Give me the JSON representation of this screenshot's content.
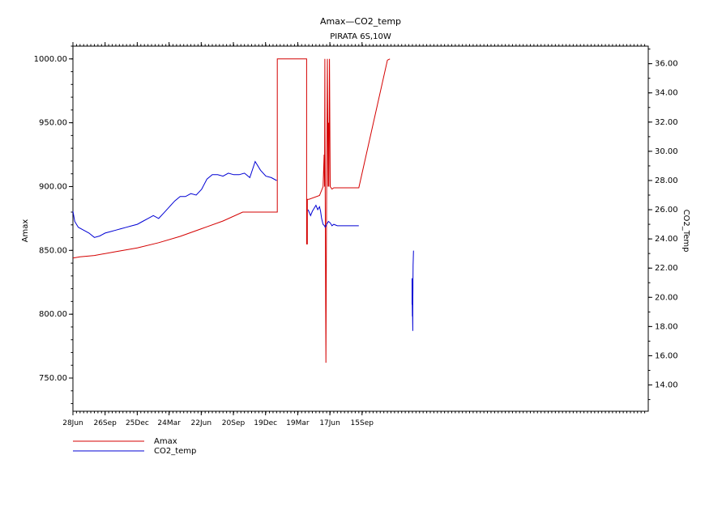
{
  "chart_data": {
    "type": "line",
    "title": "Amax—CO2_temp",
    "subtitle": "PIRATA 6S,10W",
    "ylabel_left": "Amax",
    "ylabel_right": "CO2_Temp",
    "x_ticks": [
      "28Jun",
      "26Sep",
      "25Dec",
      "24Mar",
      "22Jun",
      "20Sep",
      "19Dec",
      "19Mar",
      "17Jun",
      "15Sep"
    ],
    "x_range_days": [
      0,
      1610
    ],
    "y_left_range": [
      724,
      1010
    ],
    "y_left_ticks": [
      "750.00",
      "800.00",
      "850.00",
      "900.00",
      "950.00",
      "1000.00"
    ],
    "y_right_range": [
      12.2,
      37.2
    ],
    "y_right_ticks": [
      "14.00",
      "16.00",
      "18.00",
      "20.00",
      "22.00",
      "24.00",
      "26.00",
      "28.00",
      "30.00",
      "32.00",
      "34.00",
      "36.00"
    ],
    "grid": false,
    "legend_position": "bottom-left",
    "series": [
      {
        "name": "Amax",
        "color": "#d40000",
        "axis": "left",
        "x_days": [
          0,
          20,
          60,
          120,
          180,
          240,
          300,
          360,
          420,
          475,
          572,
          572,
          654,
          654,
          656,
          656,
          660,
          690,
          700,
          703,
          704,
          705,
          706,
          708,
          710,
          712,
          714,
          715,
          716,
          718,
          720,
          725,
          730,
          740,
          800,
          880,
          887
        ],
        "values": [
          844,
          845,
          846,
          849,
          852,
          856,
          861,
          867,
          873,
          880,
          880,
          1000,
          1000,
          855,
          855,
          890,
          890,
          893,
          900,
          925,
          900,
          1000,
          900,
          762,
          900,
          1000,
          900,
          950,
          900,
          1000,
          900,
          898,
          899,
          899,
          899,
          999,
          1000
        ]
      },
      {
        "name": "CO2_temp",
        "color": "#0000d4",
        "axis": "right",
        "segments": [
          {
            "x_days": [
              0,
              5,
              15,
              30,
              45,
              60,
              75,
              90,
              105,
              120,
              135,
              150,
              165,
              180,
              195,
              210,
              225,
              240,
              255,
              270,
              285,
              300,
              315,
              330,
              345,
              360,
              375,
              390,
              405,
              420,
              435,
              450,
              465,
              480,
              495,
              510,
              525,
              540,
              555,
              570
            ],
            "values": [
              25.9,
              25.2,
              24.8,
              24.6,
              24.4,
              24.1,
              24.2,
              24.4,
              24.5,
              24.6,
              24.7,
              24.8,
              24.9,
              25.0,
              25.2,
              25.4,
              25.6,
              25.4,
              25.8,
              26.2,
              26.6,
              26.9,
              26.9,
              27.1,
              27.0,
              27.4,
              28.1,
              28.4,
              28.4,
              28.3,
              28.5,
              28.4,
              28.4,
              28.5,
              28.2,
              29.3,
              28.7,
              28.3,
              28.2,
              28.0
            ]
          },
          {
            "x_days": [
              658,
              665,
              670,
              675,
              680,
              685,
              690,
              693,
              696,
              700,
              704,
              706,
              710,
              715,
              720,
              725,
              730,
              740,
              760,
              800
            ],
            "values": [
              26.0,
              25.6,
              25.9,
              26.1,
              26.3,
              26.0,
              26.2,
              25.9,
              25.4,
              25.0,
              24.9,
              24.8,
              25.0,
              25.2,
              25.1,
              24.9,
              25.0,
              24.9,
              24.9,
              24.9
            ]
          },
          {
            "x_days": [
              949,
              949,
              950,
              950,
              951,
              951,
              952,
              953
            ],
            "values": [
              19.5,
              21.3,
              18.7,
              19.8,
              17.7,
              19.2,
              22.2,
              23.2
            ]
          }
        ]
      }
    ]
  },
  "legend": [
    {
      "label": "Amax",
      "color": "#d40000"
    },
    {
      "label": "CO2_temp",
      "color": "#0000d4"
    }
  ]
}
